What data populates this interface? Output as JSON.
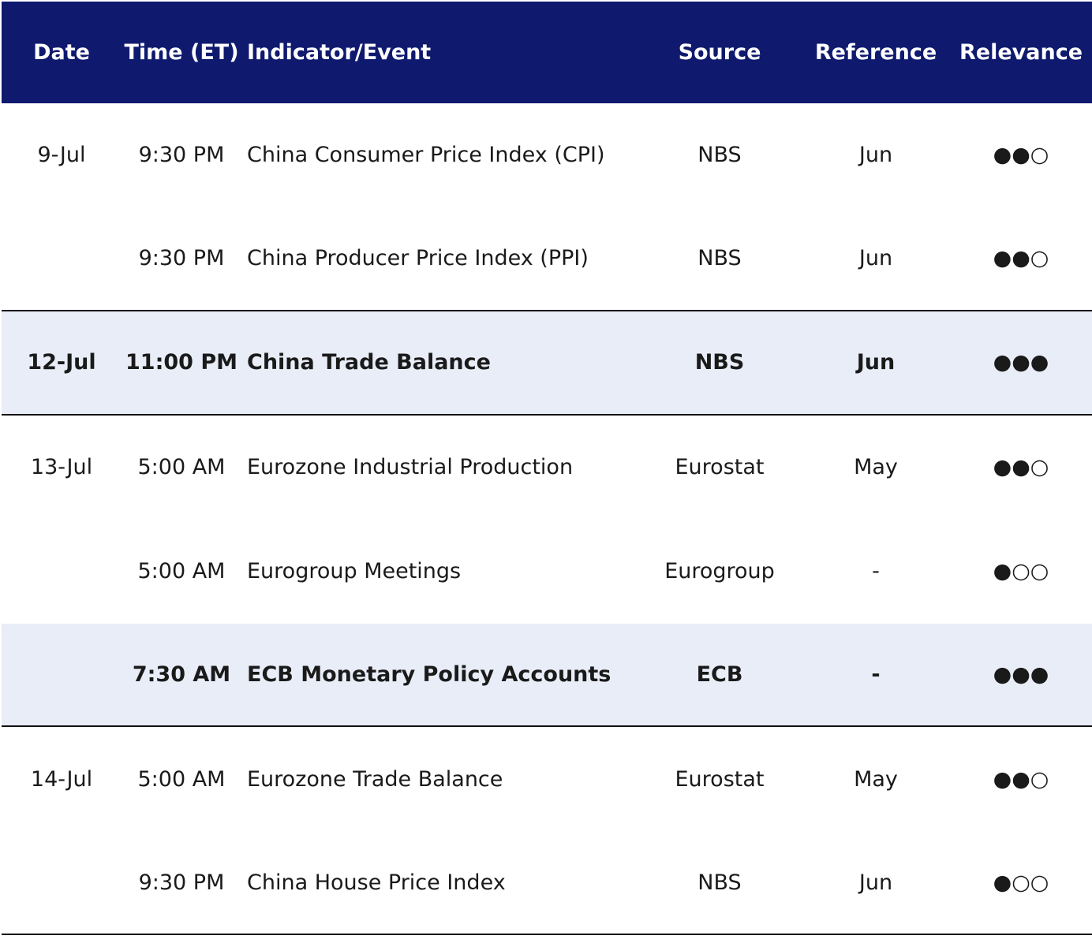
{
  "table": {
    "header": [
      "Date",
      "Time (ET)",
      "Indicator/Event",
      "Source",
      "Reference",
      "Relevance"
    ],
    "rows": [
      [
        "9-Jul",
        "9:30 PM",
        "China Consumer Price Index (CPI)",
        "NBS",
        "Jun",
        "●●○"
      ],
      [
        null,
        "9:30 PM",
        "China Producer Price Index (PPI)",
        "NBS",
        "Jun",
        "●●○"
      ],
      [
        "12-Jul",
        "11:00 PM",
        "China Trade Balance",
        "NBS",
        "Jun",
        "●●●"
      ],
      [
        "13-Jul",
        "5:00 AM",
        "Eurozone Industrial Production",
        "Eurostat",
        "May",
        "●●○"
      ],
      [
        null,
        "5:00 AM",
        "Eurogroup Meetings",
        "Eurogroup",
        "-",
        "●○○"
      ],
      [
        null,
        "7:30 AM",
        "ECB Monetary Policy Accounts",
        "ECB",
        "-",
        "●●●"
      ],
      [
        "14-Jul",
        "5:00 AM",
        "Eurozone Trade Balance",
        "Eurostat",
        "May",
        "●●○"
      ],
      [
        null,
        "9:30 PM",
        "China House Price Index",
        "NBS",
        "Jun",
        "●○○"
      ]
    ]
  }
}
